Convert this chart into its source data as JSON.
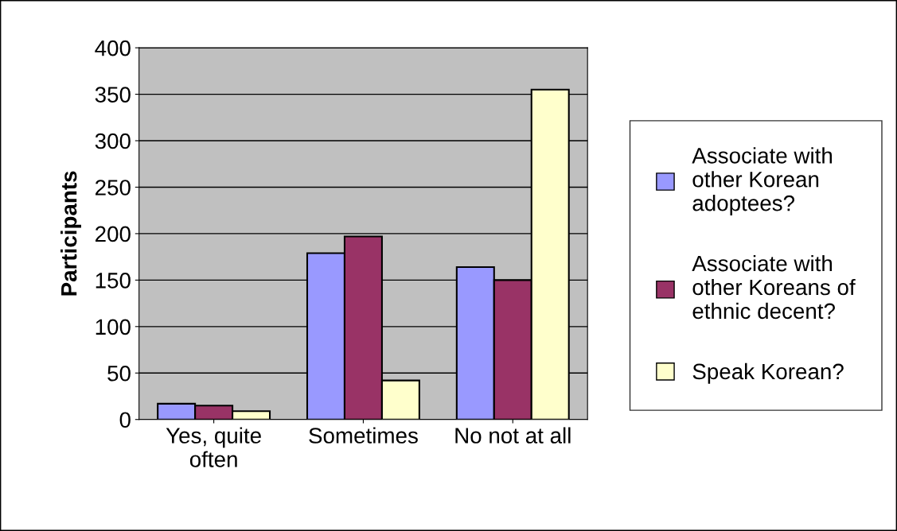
{
  "chart_data": {
    "type": "bar",
    "ylabel": "Participants",
    "categories": [
      "Yes, quite\noften",
      "Sometimes",
      "No not at all"
    ],
    "series": [
      {
        "name": "Associate with\nother Korean\nadoptees?",
        "color": "#9999ff",
        "values": [
          17,
          179,
          164
        ]
      },
      {
        "name": "Associate with\nother Koreans of\nethnic decent?",
        "color": "#993366",
        "values": [
          15,
          197,
          150
        ]
      },
      {
        "name": "Speak Korean?",
        "color": "#ffffcc",
        "values": [
          9,
          42,
          355
        ]
      }
    ],
    "ylim": [
      0,
      400
    ],
    "yticks": [
      0,
      50,
      100,
      150,
      200,
      250,
      300,
      350,
      400
    ],
    "grid": "y",
    "legend": "right"
  }
}
